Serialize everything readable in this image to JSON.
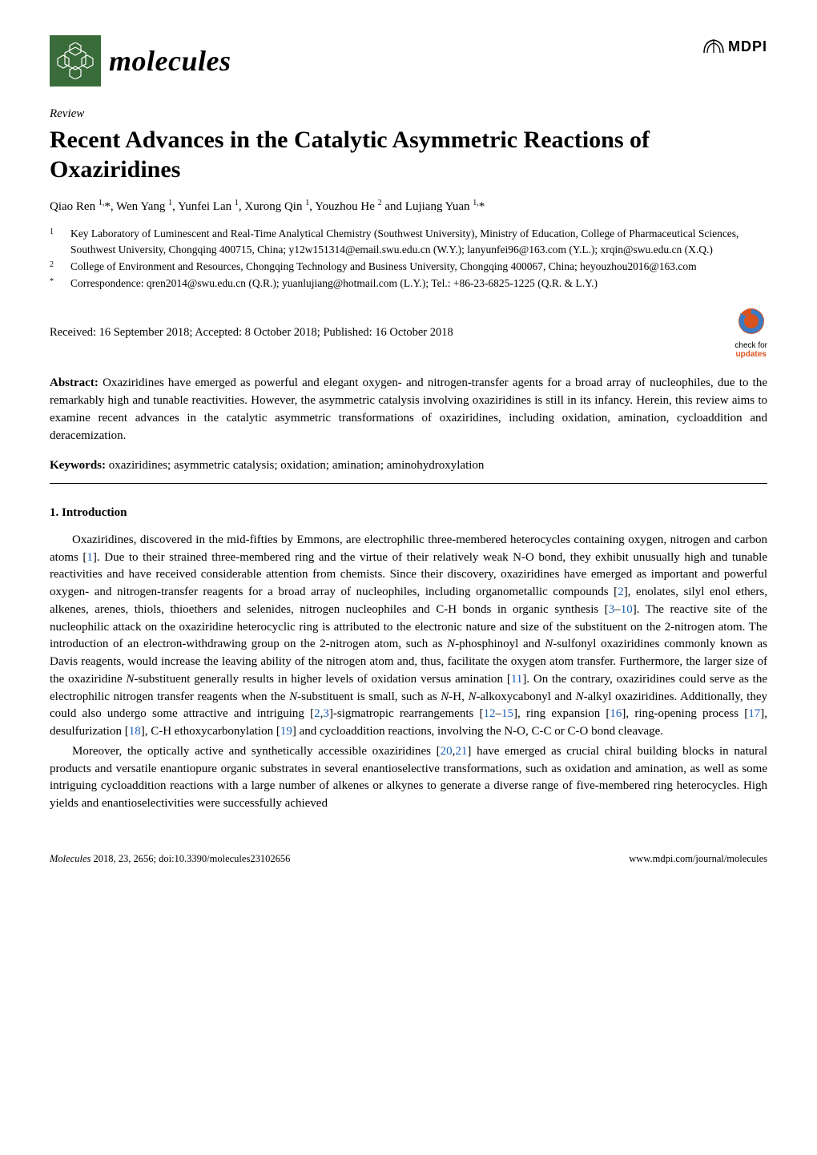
{
  "journal": {
    "name": "molecules",
    "logo_bg": "#3a6b3a",
    "publisher": "MDPI"
  },
  "article": {
    "type": "Review",
    "title": "Recent Advances in the Catalytic Asymmetric Reactions of Oxaziridines",
    "authors_html": "Qiao Ren <sup>1,</sup>*, Wen Yang <sup>1</sup>, Yunfei Lan <sup>1</sup>, Xurong Qin <sup>1</sup>, Youzhou He <sup>2</sup> and Lujiang Yuan <sup>1,</sup>*",
    "affiliations": [
      {
        "num": "1",
        "text": "Key Laboratory of Luminescent and Real-Time Analytical Chemistry (Southwest University), Ministry of Education, College of Pharmaceutical Sciences, Southwest University, Chongqing 400715, China; y12w151314@email.swu.edu.cn (W.Y.); lanyunfei96@163.com (Y.L.); xrqin@swu.edu.cn (X.Q.)"
      },
      {
        "num": "2",
        "text": "College of Environment and Resources, Chongqing Technology and Business University, Chongqing 400067, China; heyouzhou2016@163.com"
      },
      {
        "num": "*",
        "text": "Correspondence: qren2014@swu.edu.cn (Q.R.); yuanlujiang@hotmail.com (L.Y.); Tel.: +86-23-6825-1225 (Q.R. & L.Y.)"
      }
    ],
    "dates": "Received: 16 September 2018; Accepted: 8 October 2018; Published: 16 October 2018",
    "check_updates": {
      "line1": "check for",
      "line2": "updates"
    },
    "abstract_label": "Abstract:",
    "abstract": "Oxaziridines have emerged as powerful and elegant oxygen- and nitrogen-transfer agents for a broad array of nucleophiles, due to the remarkably high and tunable reactivities. However, the asymmetric catalysis involving oxaziridines is still in its infancy. Herein, this review aims to examine recent advances in the catalytic asymmetric transformations of oxaziridines, including oxidation, amination, cycloaddition and deracemization.",
    "keywords_label": "Keywords:",
    "keywords": "oxaziridines; asymmetric catalysis; oxidation; amination; aminohydroxylation"
  },
  "section1": {
    "heading": "1. Introduction",
    "para1_parts": [
      "Oxaziridines, discovered in the mid-fifties by Emmons, are electrophilic three-membered heterocycles containing oxygen, nitrogen and carbon atoms [",
      "1",
      "]. Due to their strained three-membered ring and the virtue of their relatively weak N-O bond, they exhibit unusually high and tunable reactivities and have received considerable attention from chemists. Since their discovery, oxaziridines have emerged as important and powerful oxygen- and nitrogen-transfer reagents for a broad array of nucleophiles, including organometallic compounds [",
      "2",
      "], enolates, silyl enol ethers, alkenes, arenes, thiols, thioethers and selenides, nitrogen nucleophiles and C-H bonds in organic synthesis [",
      "3",
      "–",
      "10",
      "]. The reactive site of the nucleophilic attack on the oxaziridine heterocyclic ring is attributed to the electronic nature and size of the substituent on the 2-nitrogen atom. The introduction of an electron-withdrawing group on the 2-nitrogen atom, such as ",
      "N",
      "-phosphinoyl and ",
      "N",
      "-sulfonyl oxaziridines commonly known as Davis reagents, would increase the leaving ability of the nitrogen atom and, thus, facilitate the oxygen atom transfer. Furthermore, the larger size of the oxaziridine ",
      "N",
      "-substituent generally results in higher levels of oxidation versus amination [",
      "11",
      "]. On the contrary, oxaziridines could serve as the electrophilic nitrogen transfer reagents when the ",
      "N",
      "-substituent is small, such as ",
      "N",
      "-H, ",
      "N",
      "-alkoxycabonyl and ",
      "N",
      "-alkyl oxaziridines. Additionally, they could also undergo some attractive and intriguing [",
      "2",
      ",",
      "3",
      "]-sigmatropic rearrangements [",
      "12",
      "–",
      "15",
      "], ring expansion [",
      "16",
      "], ring-opening process [",
      "17",
      "], desulfurization [",
      "18",
      "], C-H ethoxycarbonylation [",
      "19",
      "] and cycloaddition reactions, involving the N-O, C-C or C-O bond cleavage."
    ],
    "para2_parts": [
      "Moreover, the optically active and synthetically accessible oxaziridines [",
      "20",
      ",",
      "21",
      "] have emerged as crucial chiral building blocks in natural products and versatile enantiopure organic substrates in several enantioselective transformations, such as oxidation and amination, as well as some intriguing cycloaddition reactions with a large number of alkenes or alkynes to generate a diverse range of five-membered ring heterocycles. High yields and enantioselectivities were successfully achieved"
    ]
  },
  "footer": {
    "left_italic": "Molecules",
    "left_rest": " 2018, 23, 2656; doi:10.3390/molecules23102656",
    "right": "www.mdpi.com/journal/molecules"
  },
  "colors": {
    "link": "#1a5fb4",
    "check_orange": "#d8531e",
    "check_blue": "#3b7bc4"
  }
}
